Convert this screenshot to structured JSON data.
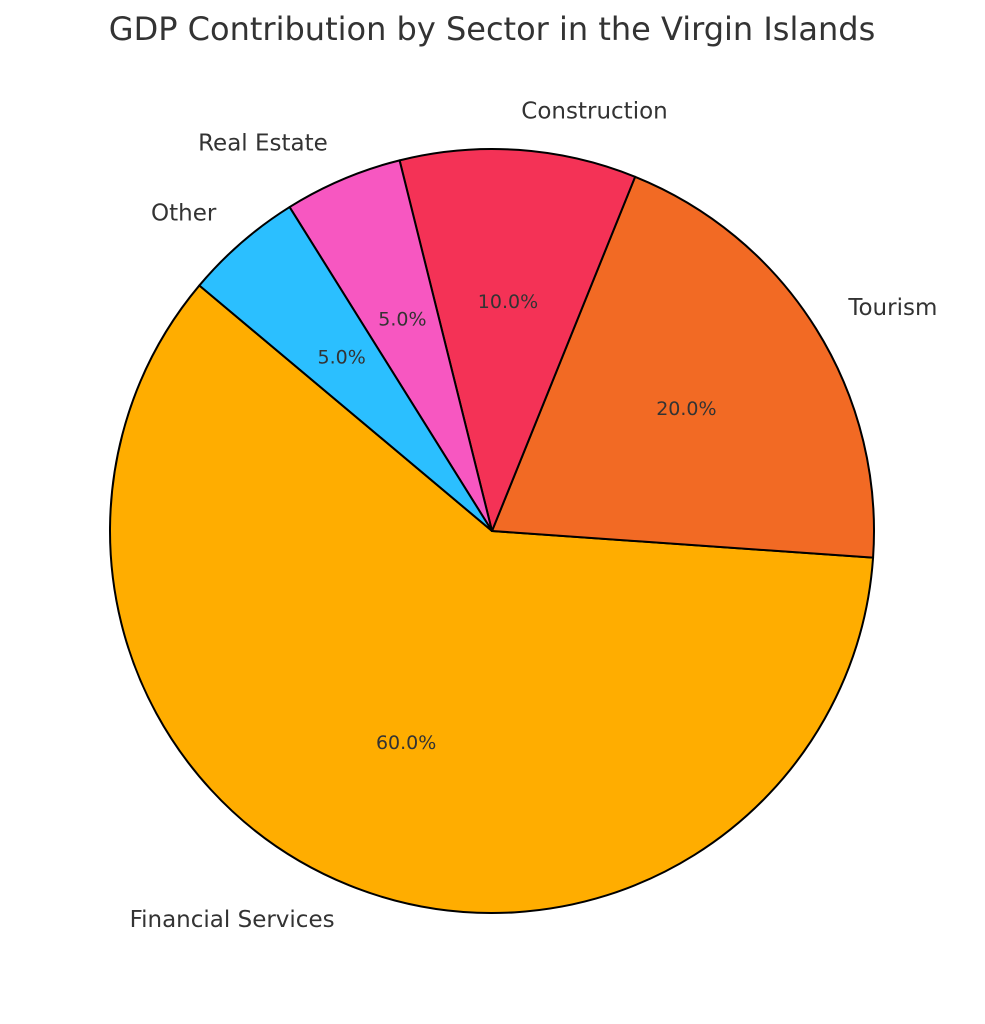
{
  "chart_data": {
    "type": "pie",
    "title": "GDP Contribution by Sector in the Virgin Islands",
    "categories": [
      "Financial Services",
      "Tourism",
      "Construction",
      "Real Estate",
      "Other"
    ],
    "values": [
      60,
      20,
      10,
      5,
      5
    ],
    "value_labels": [
      "60.0%",
      "20.0%",
      "10.0%",
      "5.0%",
      "5.0%"
    ],
    "colors": [
      "#ffad00",
      "#f26a24",
      "#f43256",
      "#f757c1",
      "#2bbfff"
    ]
  }
}
